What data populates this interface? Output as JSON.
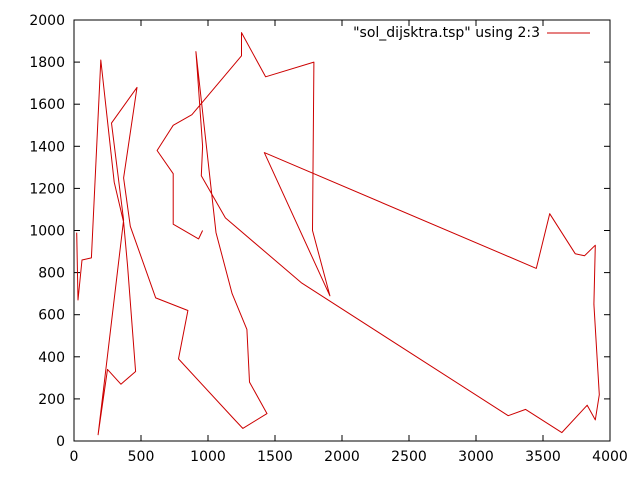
{
  "chart_data": {
    "type": "line",
    "title": "",
    "xlabel": "",
    "ylabel": "",
    "xlim": [
      0,
      4000
    ],
    "ylim": [
      0,
      2000
    ],
    "xticks": [
      0,
      500,
      1000,
      1500,
      2000,
      2500,
      3000,
      3500,
      4000
    ],
    "yticks": [
      0,
      200,
      400,
      600,
      800,
      1000,
      1200,
      1400,
      1600,
      1800,
      2000
    ],
    "grid": false,
    "legend_position": "top-right",
    "series": [
      {
        "name": "\"sol_dijsktra.tsp\" using 2:3",
        "color": "#cc0000",
        "points": [
          [
            20,
            990
          ],
          [
            30,
            670
          ],
          [
            60,
            860
          ],
          [
            130,
            870
          ],
          [
            200,
            1810
          ],
          [
            300,
            1230
          ],
          [
            370,
            1040
          ],
          [
            400,
            830
          ],
          [
            460,
            330
          ],
          [
            350,
            270
          ],
          [
            250,
            340
          ],
          [
            180,
            30
          ],
          [
            370,
            1050
          ],
          [
            280,
            1510
          ],
          [
            470,
            1680
          ],
          [
            370,
            1250
          ],
          [
            420,
            1020
          ],
          [
            610,
            680
          ],
          [
            850,
            620
          ],
          [
            780,
            390
          ],
          [
            1200,
            100
          ],
          [
            1260,
            60
          ],
          [
            1440,
            130
          ],
          [
            1310,
            280
          ],
          [
            1290,
            530
          ],
          [
            1180,
            700
          ],
          [
            1060,
            990
          ],
          [
            910,
            1850
          ],
          [
            920,
            1760
          ],
          [
            960,
            1400
          ],
          [
            950,
            1260
          ],
          [
            1130,
            1060
          ],
          [
            1700,
            750
          ],
          [
            3240,
            120
          ],
          [
            3370,
            150
          ],
          [
            3640,
            40
          ],
          [
            3830,
            170
          ],
          [
            3890,
            100
          ],
          [
            3920,
            220
          ],
          [
            3880,
            650
          ],
          [
            3890,
            930
          ],
          [
            3810,
            880
          ],
          [
            3740,
            890
          ],
          [
            3550,
            1080
          ],
          [
            3450,
            820
          ],
          [
            1420,
            1370
          ],
          [
            1910,
            690
          ],
          [
            1780,
            1000
          ],
          [
            1790,
            1800
          ],
          [
            1430,
            1730
          ],
          [
            1250,
            1940
          ],
          [
            1250,
            1830
          ],
          [
            880,
            1550
          ],
          [
            740,
            1500
          ],
          [
            620,
            1380
          ],
          [
            740,
            1270
          ],
          [
            740,
            1030
          ],
          [
            930,
            960
          ],
          [
            960,
            1000
          ]
        ]
      }
    ]
  }
}
